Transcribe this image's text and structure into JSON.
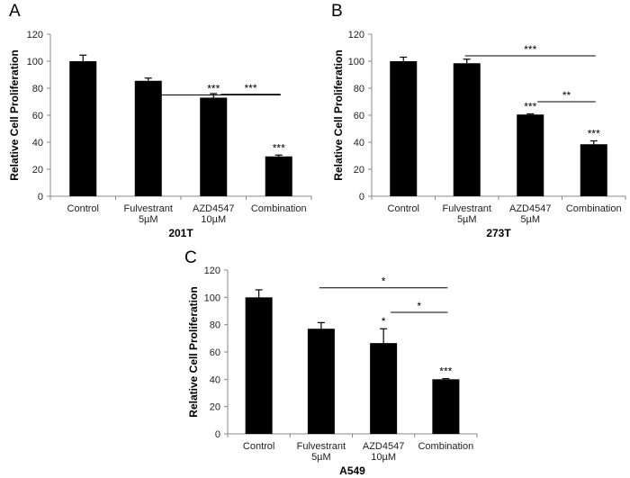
{
  "chart_data": [
    {
      "type": "bar",
      "panel_label": "A",
      "cell_line": "201T",
      "ylabel": "Relative Cell Proliferation",
      "ylim": [
        0,
        120
      ],
      "yticks": [
        0,
        20,
        40,
        60,
        80,
        100,
        120
      ],
      "categories": [
        [
          "Control"
        ],
        [
          "Fulvestrant",
          "5µM"
        ],
        [
          "AZD4547",
          "10µM"
        ],
        [
          "Combination"
        ]
      ],
      "values": [
        100,
        85.5,
        73,
        29.5
      ],
      "errors": [
        4.5,
        2,
        3,
        1
      ],
      "bar_significance": [
        "",
        "",
        "",
        "***"
      ],
      "comparisons": [
        {
          "from": 1,
          "to": 3,
          "y": 75,
          "label": "***"
        },
        {
          "from": 2,
          "to": 3,
          "y": 75.5,
          "label": "***"
        }
      ]
    },
    {
      "type": "bar",
      "panel_label": "B",
      "cell_line": "273T",
      "ylabel": "Relative Cell Proliferation",
      "ylim": [
        0,
        120
      ],
      "yticks": [
        0,
        20,
        40,
        60,
        80,
        100,
        120
      ],
      "categories": [
        [
          "Control"
        ],
        [
          "Fulvestrant",
          "5µM"
        ],
        [
          "AZD4547",
          "5µM"
        ],
        [
          "Combination"
        ]
      ],
      "values": [
        100,
        98.5,
        60.5,
        38.5
      ],
      "errors": [
        3,
        3,
        0.5,
        2.5
      ],
      "bar_significance": [
        "",
        "",
        "***",
        "***"
      ],
      "comparisons": [
        {
          "from": 1,
          "to": 3,
          "y": 104,
          "label": "***"
        },
        {
          "from": 2,
          "to": 3,
          "y": 70,
          "label": "**"
        }
      ]
    },
    {
      "type": "bar",
      "panel_label": "C",
      "cell_line": "A549",
      "ylabel": "Relative Cell Proliferation",
      "ylim": [
        0,
        120
      ],
      "yticks": [
        0,
        20,
        40,
        60,
        80,
        100,
        120
      ],
      "categories": [
        [
          "Control"
        ],
        [
          "Fulvestrant",
          "5µM"
        ],
        [
          "AZD4547",
          "10µM"
        ],
        [
          "Combination"
        ]
      ],
      "values": [
        100,
        77,
        66.5,
        40
      ],
      "errors": [
        5.5,
        4.5,
        10.5,
        0.5
      ],
      "bar_significance": [
        "",
        "",
        "*",
        "***"
      ],
      "comparisons": [
        {
          "from": 1,
          "to": 3,
          "y": 107,
          "label": "*"
        },
        {
          "from": 2,
          "to": 3,
          "y": 89,
          "label": "*"
        }
      ]
    }
  ]
}
